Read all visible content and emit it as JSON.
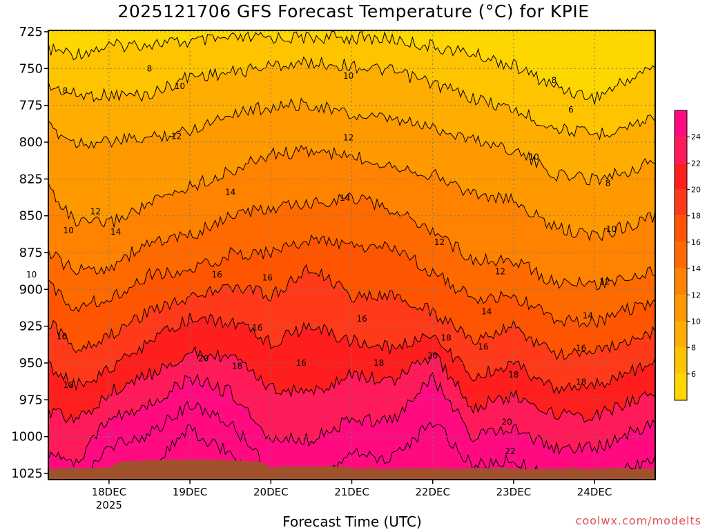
{
  "chart_data": {
    "type": "heatmap",
    "title": "2025121706 GFS Forecast Temperature (°C) for KPIE",
    "xlabel": "Forecast Time (UTC)",
    "ylabel": "",
    "credit": "coolwx.com/modelts",
    "x_ticks": [
      {
        "label": "18DEC",
        "sublabel": "2025",
        "hours": 18
      },
      {
        "label": "19DEC",
        "sublabel": "",
        "hours": 42
      },
      {
        "label": "20DEC",
        "sublabel": "",
        "hours": 66
      },
      {
        "label": "21DEC",
        "sublabel": "",
        "hours": 90
      },
      {
        "label": "22DEC",
        "sublabel": "",
        "hours": 114
      },
      {
        "label": "23DEC",
        "sublabel": "",
        "hours": 138
      },
      {
        "label": "24DEC",
        "sublabel": "",
        "hours": 162
      }
    ],
    "xlim_hours": [
      0,
      180
    ],
    "y_ticks": [
      "725",
      "750",
      "775",
      "800",
      "825",
      "850",
      "875",
      "900",
      "925",
      "950",
      "975",
      "1000",
      "1025"
    ],
    "ylim_hpa": [
      725,
      1025
    ],
    "colorbar": {
      "levels": [
        4,
        6,
        8,
        10,
        12,
        14,
        16,
        18,
        20,
        22,
        24,
        26
      ],
      "labels": [
        "6",
        "8",
        "10",
        "12",
        "14",
        "16",
        "18",
        "20",
        "22",
        "24"
      ],
      "colors": [
        "#ffd700",
        "#ffc400",
        "#ffad00",
        "#ff9900",
        "#ff8200",
        "#ff6a00",
        "#ff5500",
        "#ff3a1a",
        "#ff1e1e",
        "#ff1a5a",
        "#ff0a80"
      ]
    },
    "isotherm_profiles": [
      {
        "hours": 0,
        "p": [
          737,
          762,
          790,
          830,
          875,
          897,
          922,
          952,
          982,
          1012,
          1035,
          1040
        ]
      },
      {
        "hours": 8,
        "p": [
          740,
          768,
          800,
          855,
          888,
          912,
          940,
          965,
          990,
          1018,
          1035,
          1040
        ]
      },
      {
        "hours": 18,
        "p": [
          735,
          768,
          800,
          855,
          885,
          906,
          932,
          955,
          970,
          988,
          1006,
          1030
        ]
      },
      {
        "hours": 30,
        "p": [
          733,
          768,
          797,
          842,
          868,
          890,
          914,
          936,
          958,
          978,
          998,
          1020
        ]
      },
      {
        "hours": 42,
        "p": [
          732,
          755,
          792,
          830,
          864,
          888,
          905,
          920,
          943,
          960,
          978,
          995
        ]
      },
      {
        "hours": 54,
        "p": [
          730,
          753,
          780,
          820,
          850,
          876,
          898,
          922,
          946,
          970,
          990,
          1012
        ]
      },
      {
        "hours": 66,
        "p": [
          729,
          748,
          776,
          808,
          845,
          875,
          904,
          936,
          967,
          1002,
          1025,
          1040
        ]
      },
      {
        "hours": 78,
        "p": [
          729,
          746,
          774,
          806,
          842,
          866,
          885,
          925,
          970,
          1002,
          1025,
          1040
        ]
      },
      {
        "hours": 90,
        "p": [
          729,
          748,
          782,
          810,
          837,
          871,
          905,
          935,
          958,
          988,
          1012,
          1035
        ]
      },
      {
        "hours": 102,
        "p": [
          730,
          752,
          785,
          815,
          846,
          872,
          905,
          940,
          962,
          990,
          1015,
          1038
        ]
      },
      {
        "hours": 114,
        "p": [
          735,
          760,
          790,
          822,
          860,
          888,
          915,
          930,
          944,
          960,
          990,
          1030
        ]
      },
      {
        "hours": 126,
        "p": [
          740,
          770,
          798,
          835,
          880,
          907,
          935,
          960,
          980,
          1000,
          1020,
          1040
        ]
      },
      {
        "hours": 138,
        "p": [
          748,
          778,
          805,
          840,
          880,
          905,
          925,
          950,
          972,
          995,
          1016,
          1038
        ]
      },
      {
        "hours": 150,
        "p": [
          762,
          790,
          822,
          858,
          895,
          920,
          945,
          968,
          985,
          1008,
          1030,
          1040
        ]
      },
      {
        "hours": 162,
        "p": [
          770,
          795,
          825,
          864,
          897,
          922,
          943,
          965,
          986,
          1008,
          1030,
          1040
        ]
      },
      {
        "hours": 174,
        "p": [
          755,
          788,
          818,
          855,
          890,
          912,
          933,
          955,
          975,
          996,
          1020,
          1040
        ]
      },
      {
        "hours": 180,
        "p": [
          748,
          782,
          812,
          850,
          888,
          908,
          928,
          950,
          970,
          990,
          1015,
          1040
        ]
      }
    ],
    "contour_labels": [
      {
        "text": "8",
        "hours": 5,
        "p": 765
      },
      {
        "text": "8",
        "hours": 30,
        "p": 750
      },
      {
        "text": "8",
        "hours": 150,
        "p": 758
      },
      {
        "text": "6",
        "hours": 155,
        "p": 778
      },
      {
        "text": "8",
        "hours": 166,
        "p": 828
      },
      {
        "text": "10",
        "hours": 39,
        "p": 762
      },
      {
        "text": "10",
        "hours": 89,
        "p": 755
      },
      {
        "text": "10",
        "hours": 144,
        "p": 810
      },
      {
        "text": "10",
        "hours": 6,
        "p": 860
      },
      {
        "text": "10",
        "hours": -5,
        "p": 890
      },
      {
        "text": "10",
        "hours": 167,
        "p": 859
      },
      {
        "text": "12",
        "hours": 38,
        "p": 796
      },
      {
        "text": "12",
        "hours": 89,
        "p": 797
      },
      {
        "text": "12",
        "hours": 14,
        "p": 847
      },
      {
        "text": "12",
        "hours": 116,
        "p": 868
      },
      {
        "text": "12",
        "hours": 134,
        "p": 888
      },
      {
        "text": "12",
        "hours": 165,
        "p": 895
      },
      {
        "text": "14",
        "hours": 20,
        "p": 861
      },
      {
        "text": "14",
        "hours": 54,
        "p": 834
      },
      {
        "text": "14",
        "hours": 88,
        "p": 838
      },
      {
        "text": "14",
        "hours": 130,
        "p": 915
      },
      {
        "text": "14",
        "hours": 160,
        "p": 918
      },
      {
        "text": "16",
        "hours": 50,
        "p": 890
      },
      {
        "text": "16",
        "hours": 65,
        "p": 892
      },
      {
        "text": "16",
        "hours": 62,
        "p": 926
      },
      {
        "text": "16",
        "hours": 4,
        "p": 932
      },
      {
        "text": "16",
        "hours": 75,
        "p": 950
      },
      {
        "text": "16",
        "hours": 93,
        "p": 920
      },
      {
        "text": "16",
        "hours": 129,
        "p": 939
      },
      {
        "text": "16",
        "hours": 158,
        "p": 940
      },
      {
        "text": "18",
        "hours": 6,
        "p": 965
      },
      {
        "text": "18",
        "hours": 56,
        "p": 952
      },
      {
        "text": "18",
        "hours": 98,
        "p": 950
      },
      {
        "text": "18",
        "hours": 118,
        "p": 933
      },
      {
        "text": "18",
        "hours": 138,
        "p": 958
      },
      {
        "text": "18",
        "hours": 158,
        "p": 963
      },
      {
        "text": "20",
        "hours": 46,
        "p": 947
      },
      {
        "text": "20",
        "hours": 114,
        "p": 945
      },
      {
        "text": "20",
        "hours": 136,
        "p": 990
      },
      {
        "text": "22",
        "hours": 137,
        "p": 1010
      }
    ]
  }
}
